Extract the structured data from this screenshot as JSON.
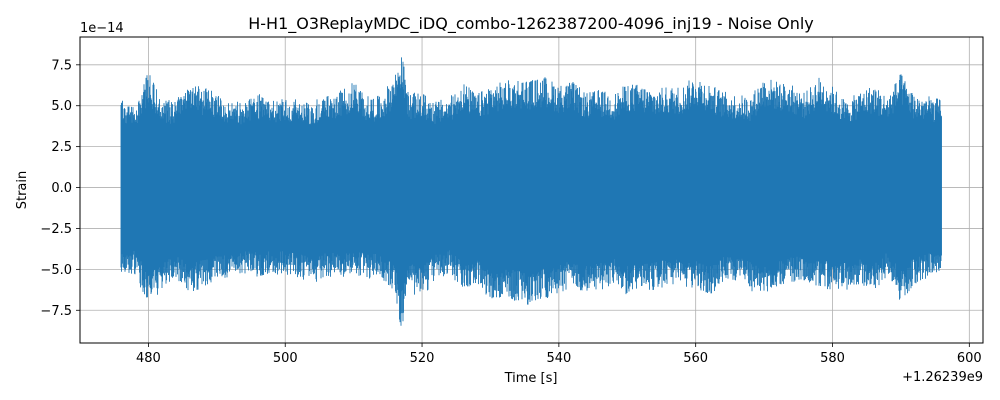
{
  "chart_data": {
    "type": "line",
    "title": "H-H1_O3ReplayMDC_iDQ_combo-1262387200-4096_inj19 - Noise Only",
    "xlabel": "Time [s]",
    "ylabel": "Strain",
    "x_offset_label": "+1.26239e9",
    "y_scale_label": "1e−14",
    "xlim": [
      470,
      602
    ],
    "ylim": [
      -9.5,
      9.2
    ],
    "x_ticks": [
      480,
      500,
      520,
      540,
      560,
      580,
      600
    ],
    "x_tick_labels": [
      "480",
      "500",
      "520",
      "540",
      "560",
      "580",
      "600"
    ],
    "y_ticks": [
      -7.5,
      -5.0,
      -2.5,
      0.0,
      2.5,
      5.0,
      7.5
    ],
    "y_tick_labels": [
      "−7.5",
      "−5.0",
      "−2.5",
      "0.0",
      "2.5",
      "5.0",
      "7.5"
    ],
    "grid": true,
    "series": [
      {
        "color": "#1f77b4",
        "x_start": 476,
        "x_end": 596,
        "envelope_x": [
          476,
          478,
          480,
          482,
          484,
          486,
          488,
          490,
          492,
          494,
          496,
          498,
          500,
          502,
          504,
          506,
          508,
          510,
          512,
          514,
          516,
          517,
          518,
          520,
          522,
          524,
          526,
          528,
          530,
          532,
          534,
          536,
          538,
          540,
          542,
          544,
          546,
          548,
          550,
          552,
          554,
          556,
          558,
          560,
          562,
          564,
          566,
          568,
          570,
          572,
          574,
          576,
          578,
          580,
          582,
          584,
          586,
          588,
          590,
          592,
          594,
          596
        ],
        "envelope_upper": [
          5.4,
          5.0,
          7.1,
          5.4,
          5.3,
          6.7,
          6.1,
          5.9,
          5.3,
          5.2,
          5.8,
          5.3,
          5.6,
          5.4,
          5.3,
          5.7,
          5.9,
          6.5,
          5.6,
          5.6,
          6.9,
          8.4,
          5.8,
          5.8,
          5.3,
          5.5,
          6.5,
          5.7,
          6.3,
          6.5,
          6.7,
          6.6,
          6.8,
          6.3,
          6.5,
          5.8,
          6.0,
          5.7,
          6.4,
          6.3,
          6.0,
          6.2,
          6.2,
          6.9,
          6.4,
          5.9,
          5.7,
          5.6,
          6.8,
          6.5,
          6.3,
          5.8,
          6.8,
          6.2,
          5.3,
          5.9,
          6.3,
          5.6,
          7.0,
          5.7,
          5.6,
          5.4
        ],
        "envelope_lower": [
          -5.6,
          -5.3,
          -7.3,
          -6.4,
          -5.5,
          -6.5,
          -6.1,
          -5.8,
          -5.4,
          -5.3,
          -5.5,
          -5.4,
          -5.3,
          -5.6,
          -6.0,
          -5.4,
          -5.6,
          -5.3,
          -5.6,
          -5.5,
          -6.4,
          -8.8,
          -6.4,
          -6.8,
          -5.6,
          -5.3,
          -6.4,
          -5.9,
          -6.9,
          -6.7,
          -7.0,
          -7.4,
          -6.8,
          -6.6,
          -6.1,
          -6.6,
          -6.3,
          -6.0,
          -6.6,
          -6.2,
          -6.3,
          -6.0,
          -6.2,
          -6.2,
          -6.7,
          -5.9,
          -5.7,
          -6.3,
          -6.7,
          -6.0,
          -5.9,
          -5.7,
          -6.1,
          -6.3,
          -6.4,
          -5.9,
          -6.4,
          -5.5,
          -7.0,
          -5.9,
          -5.6,
          -5.3
        ]
      }
    ]
  }
}
